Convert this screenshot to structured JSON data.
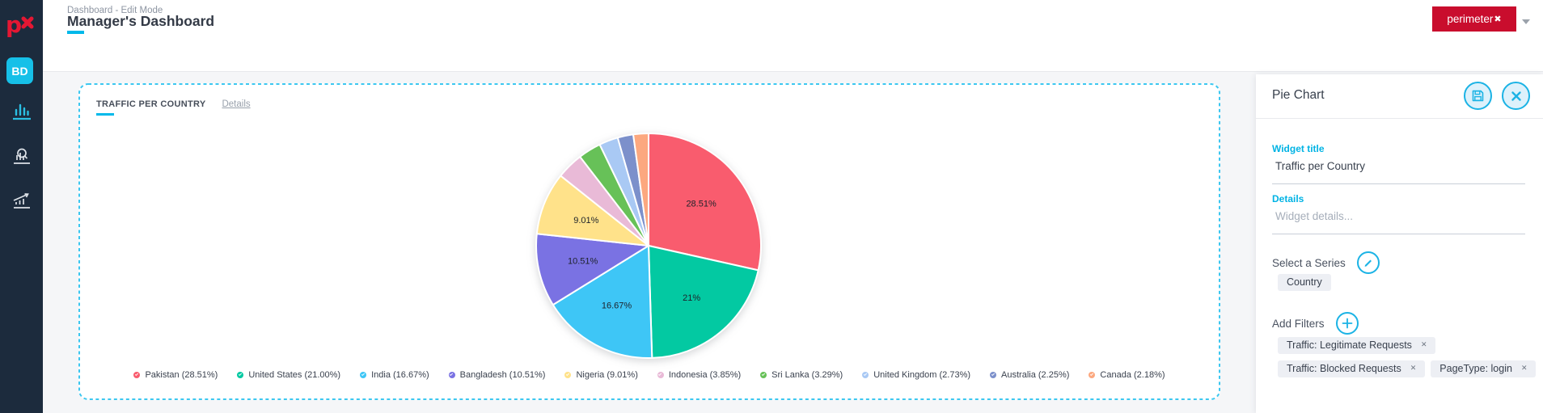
{
  "sidebar": {
    "logo_text": "px",
    "avatar": "BD"
  },
  "header": {
    "breadcrumb": "Dashboard - Edit Mode",
    "title": "Manager's Dashboard",
    "brand_name": "perimeter",
    "brand_x": "✖"
  },
  "widget": {
    "title": "TRAFFIC PER COUNTRY",
    "details_link": "Details"
  },
  "chart_data": {
    "type": "pie",
    "title": "Traffic per Country",
    "series_field": "Country",
    "legend_position": "bottom",
    "start_angle_deg": 0,
    "label_radius_ratio": 0.6,
    "slices": [
      {
        "label": "Pakistan",
        "pct": 28.51,
        "display": "28.51%",
        "legend": "Pakistan (28.51%)",
        "color": "#F95C6E"
      },
      {
        "label": "United States",
        "pct": 21.0,
        "display": "21%",
        "legend": "United States (21.00%)",
        "color": "#03C9A2"
      },
      {
        "label": "India",
        "pct": 16.67,
        "display": "16.67%",
        "legend": "India (16.67%)",
        "color": "#3EC6F6"
      },
      {
        "label": "Bangladesh",
        "pct": 10.51,
        "display": "10.51%",
        "legend": "Bangladesh (10.51%)",
        "color": "#7A72E3"
      },
      {
        "label": "Nigeria",
        "pct": 9.01,
        "display": "9.01%",
        "legend": "Nigeria (9.01%)",
        "color": "#FFE28A"
      },
      {
        "label": "Indonesia",
        "pct": 3.85,
        "display": "",
        "legend": "Indonesia (3.85%)",
        "color": "#E9BAD7"
      },
      {
        "label": "Sri Lanka",
        "pct": 3.29,
        "display": "",
        "legend": "Sri Lanka (3.29%)",
        "color": "#67C158"
      },
      {
        "label": "United Kingdom",
        "pct": 2.73,
        "display": "",
        "legend": "United Kingdom (2.73%)",
        "color": "#A9C9F4"
      },
      {
        "label": "Australia",
        "pct": 2.25,
        "display": "",
        "legend": "Australia (2.25%)",
        "color": "#7C90CB"
      },
      {
        "label": "Canada",
        "pct": 2.18,
        "display": "",
        "legend": "Canada (2.18%)",
        "color": "#FCA87F"
      }
    ]
  },
  "panel": {
    "title": "Pie Chart",
    "widget_title_label": "Widget title",
    "widget_title_value": "Traffic per Country",
    "details_label": "Details",
    "details_placeholder": "Widget details...",
    "series_label": "Select a Series",
    "series_tag": "Country",
    "filters_label": "Add Filters",
    "filters": [
      "Traffic: Legitimate Requests",
      "Traffic: Blocked Requests",
      "PageType: login"
    ],
    "accent": "#00B5E5"
  }
}
